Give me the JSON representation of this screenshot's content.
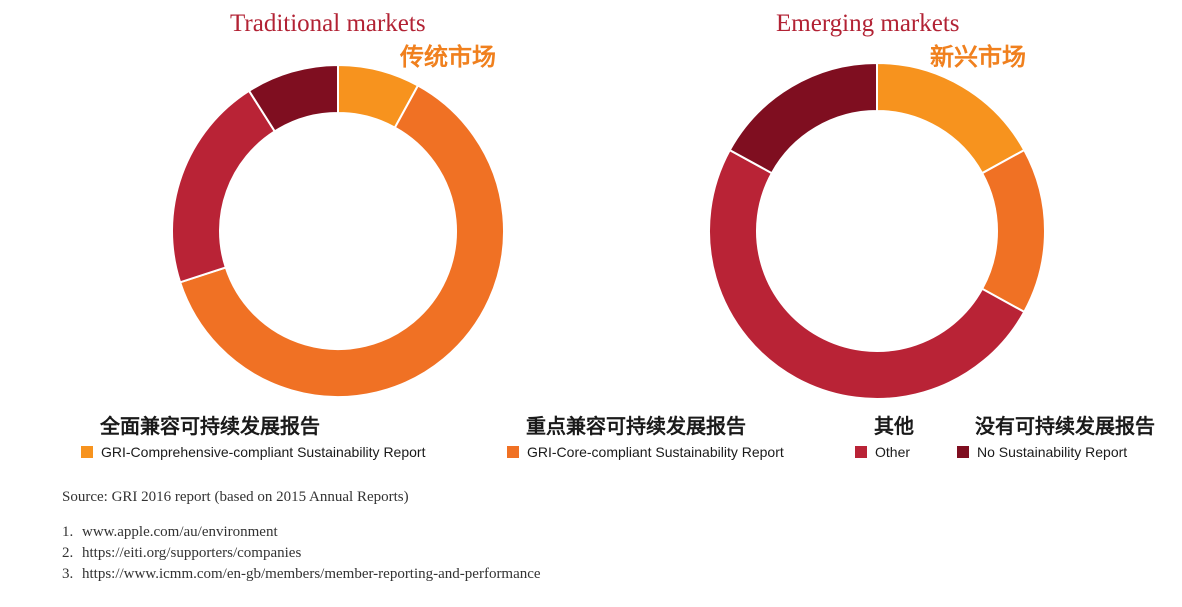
{
  "chart_data": [
    {
      "type": "pie",
      "style": "donut",
      "title": "Traditional markets",
      "subtitle": "传统市场",
      "categories": [
        "GRI-Comprehensive-compliant Sustainability Report",
        "GRI-Core-compliant Sustainability Report",
        "Other",
        "No Sustainability Report"
      ],
      "values": [
        8,
        62,
        21,
        9
      ]
    },
    {
      "type": "pie",
      "style": "donut",
      "title": "Emerging markets",
      "subtitle": "新兴市场",
      "categories": [
        "GRI-Comprehensive-compliant Sustainability Report",
        "GRI-Core-compliant Sustainability Report",
        "Other",
        "No Sustainability Report"
      ],
      "values": [
        17,
        16,
        50,
        17
      ]
    }
  ],
  "colors": [
    "#f7931e",
    "#f07124",
    "#b92336",
    "#7f0e20"
  ],
  "legend": [
    {
      "cn": "全面兼容可持续发展报告",
      "en": "GRI-Comprehensive-compliant Sustainability Report"
    },
    {
      "cn": "重点兼容可持续发展报告",
      "en": "GRI-Core-compliant Sustainability Report"
    },
    {
      "cn": "其他",
      "en": "Other"
    },
    {
      "cn": "没有可持续发展报告",
      "en": "No Sustainability Report"
    }
  ],
  "source": "Source: GRI 2016 report (based on 2015 Annual Reports)",
  "references": [
    {
      "num": "1.",
      "text": "www.apple.com/au/environment"
    },
    {
      "num": "2.",
      "text": "https://eiti.org/supporters/companies"
    },
    {
      "num": "3.",
      "text": "https://www.icmm.com/en-gb/members/member-reporting-and-performance"
    }
  ]
}
